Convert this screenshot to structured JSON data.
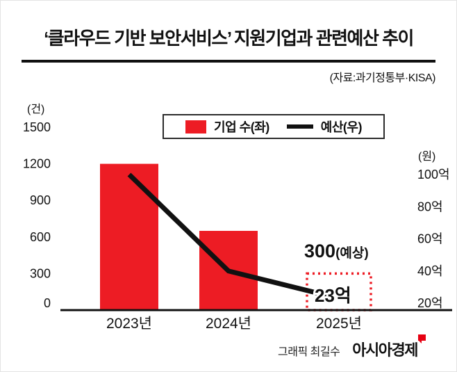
{
  "header": {
    "title": "‘클라우드 기반 보안서비스’ 지원기업과 관련예산 추이",
    "source": "(자료:과기정통부·KISA)"
  },
  "legend": {
    "bar_label": "기업 수(좌)",
    "line_label": "예산(우)"
  },
  "footer": {
    "credit": "그래픽 최길수",
    "logo": "아시아경제"
  },
  "colors": {
    "bar": "#ed1c24",
    "line": "#111111",
    "text": "#111111",
    "logo_flag": "#e60012"
  },
  "chart_data": {
    "type": "bar",
    "combo": "bar+line",
    "title": "‘클라우드 기반 보안서비스’ 지원기업과 관련예산 추이",
    "grid": false,
    "legend_position": "top-center",
    "categories": [
      "2023년",
      "2024년",
      "2025년"
    ],
    "series": [
      {
        "name": "기업 수(좌)",
        "chart": "bar",
        "axis": "left",
        "unit": "건",
        "values": [
          1200,
          650,
          300
        ],
        "note": "2025 value is a forecast (예상), drawn as red dotted outline box"
      },
      {
        "name": "예산(우)",
        "chart": "line",
        "axis": "right",
        "unit": "억원",
        "values": [
          100,
          40,
          23
        ]
      }
    ],
    "left_axis": {
      "title": "(건)",
      "ticks": [
        1500,
        1200,
        900,
        600,
        300,
        0
      ],
      "range": [
        0,
        1500
      ]
    },
    "right_axis": {
      "title": "(원)",
      "ticks": [
        "100억",
        "80억",
        "60억",
        "40억",
        "20억"
      ],
      "tick_values": [
        100,
        80,
        60,
        40,
        20
      ]
    },
    "annotations": [
      {
        "target": "2025-bar",
        "bold": "300",
        "suffix": "(예상)"
      },
      {
        "target": "2025-line-point",
        "text": "23억"
      }
    ]
  }
}
